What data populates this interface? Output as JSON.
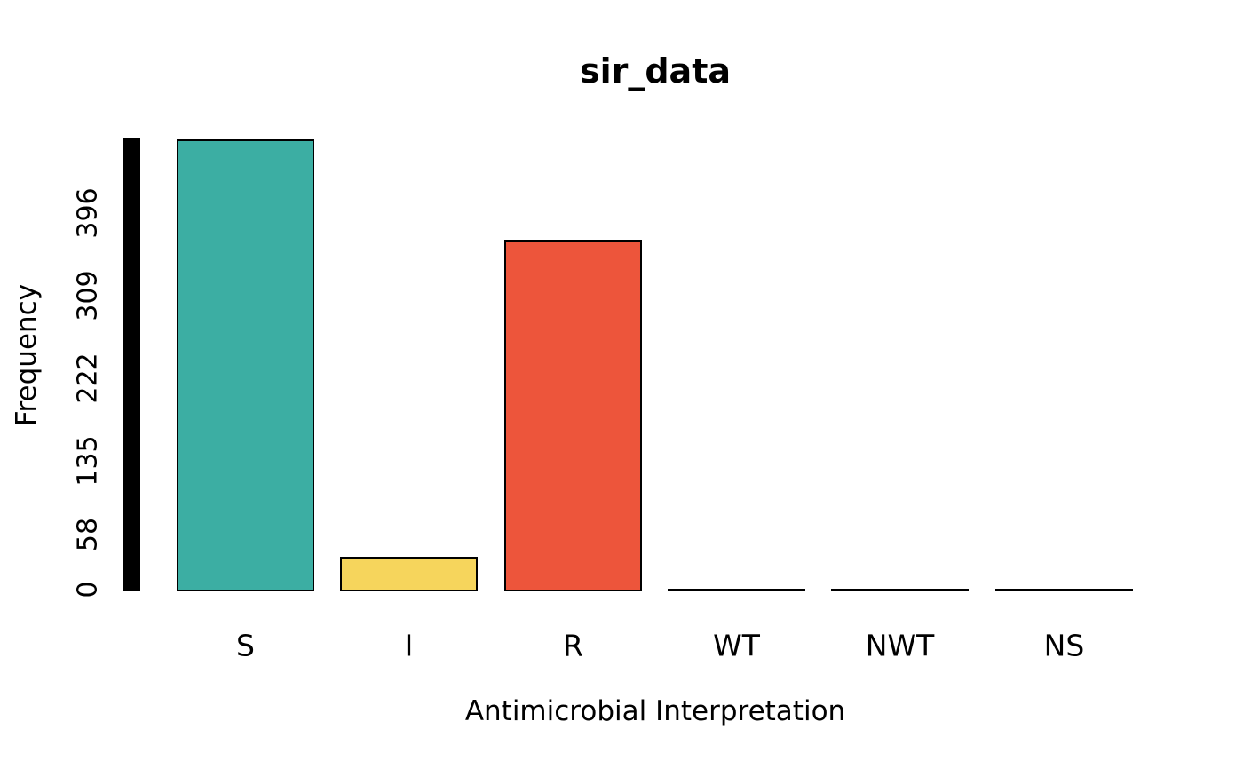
{
  "chart_data": {
    "type": "bar",
    "title": "sir_data",
    "xlabel": "Antimicrobial Interpretation",
    "ylabel": "Frequency",
    "categories": [
      "S",
      "I",
      "R",
      "WT",
      "NWT",
      "NS"
    ],
    "values": [
      475,
      36,
      370,
      0,
      0,
      0
    ],
    "bar_colors": [
      "#3CAEA3",
      "#F6D55C",
      "#ED553B",
      "#000000",
      "#000000",
      "#000000"
    ],
    "bar_border_color": "#000000",
    "y_ticks": [
      0,
      58,
      135,
      222,
      309,
      396
    ],
    "ylim": [
      0,
      475
    ],
    "grid": false,
    "legend": "none",
    "background_color": "#FFFFFF",
    "y_axis_bar_color": "#000000",
    "zero_bar_style": "horizontal baseline line"
  }
}
